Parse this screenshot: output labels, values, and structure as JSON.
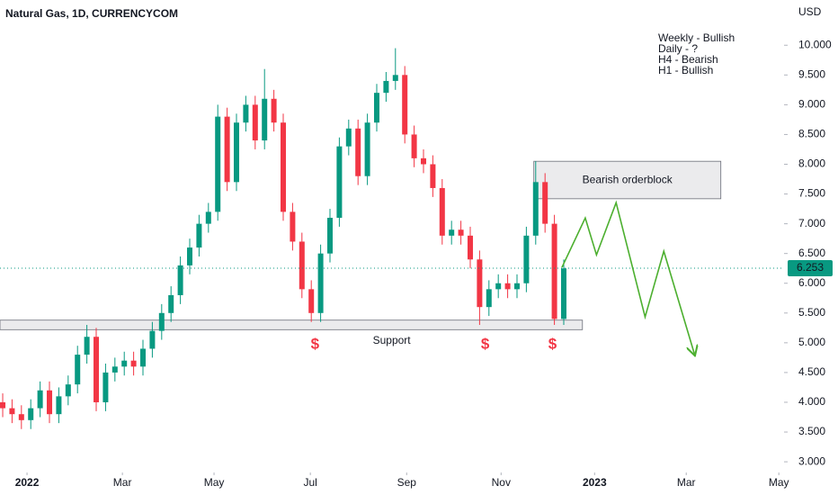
{
  "chart_data": {
    "type": "candlestick",
    "title": "Natural Gas, 1D, CURRENCYCOM",
    "y_axis_label": "USD",
    "up_color": "#089981",
    "down_color": "#f23645",
    "grid": false,
    "open": [
      4.0,
      3.9,
      3.8,
      3.7,
      3.9,
      4.2,
      3.8,
      4.1,
      4.3,
      4.8,
      5.1,
      4.0,
      4.5,
      4.6,
      4.7,
      4.6,
      4.9,
      5.2,
      5.5,
      5.8,
      6.3,
      6.6,
      7.0,
      7.2,
      8.8,
      7.7,
      8.7,
      9.0,
      8.4,
      9.1,
      8.7,
      7.2,
      6.7,
      5.9,
      5.5,
      6.5,
      7.1,
      8.3,
      8.6,
      7.8,
      8.7,
      9.2,
      9.4,
      9.5,
      8.5,
      8.1,
      8.0,
      7.6,
      6.8,
      6.9,
      6.8,
      6.4,
      5.6,
      5.9,
      6.0,
      5.9,
      6.0,
      6.8,
      7.7,
      7.0,
      5.4
    ],
    "high": [
      4.15,
      4.05,
      3.95,
      4.05,
      4.35,
      4.35,
      4.25,
      4.45,
      4.95,
      5.3,
      5.25,
      4.65,
      4.75,
      4.85,
      4.85,
      5.05,
      5.35,
      5.65,
      5.95,
      6.45,
      6.75,
      7.15,
      7.35,
      9.0,
      8.95,
      8.85,
      9.15,
      9.15,
      9.6,
      9.25,
      8.85,
      7.35,
      6.85,
      6.05,
      6.65,
      7.25,
      8.45,
      8.75,
      8.75,
      8.85,
      9.35,
      9.55,
      9.95,
      9.65,
      8.65,
      8.25,
      8.15,
      7.75,
      7.05,
      7.05,
      6.95,
      6.55,
      6.05,
      6.15,
      6.15,
      6.15,
      6.95,
      8.05,
      7.85,
      7.15,
      6.4
    ],
    "low": [
      3.75,
      3.65,
      3.55,
      3.55,
      3.75,
      3.65,
      3.65,
      3.95,
      4.15,
      4.65,
      3.85,
      3.85,
      4.35,
      4.45,
      4.45,
      4.45,
      4.75,
      5.05,
      5.35,
      5.65,
      6.15,
      6.45,
      6.85,
      7.05,
      7.55,
      7.55,
      8.55,
      8.25,
      8.25,
      8.55,
      7.05,
      6.55,
      5.75,
      5.35,
      5.35,
      6.35,
      6.95,
      8.15,
      7.65,
      7.65,
      8.55,
      9.05,
      9.25,
      8.35,
      7.95,
      7.85,
      7.45,
      6.65,
      6.65,
      6.65,
      6.25,
      5.3,
      5.45,
      5.75,
      5.75,
      5.75,
      5.85,
      6.65,
      6.85,
      5.3,
      5.3
    ],
    "close": [
      3.9,
      3.8,
      3.7,
      3.9,
      4.2,
      3.8,
      4.1,
      4.3,
      4.8,
      5.1,
      4.0,
      4.5,
      4.6,
      4.7,
      4.6,
      4.9,
      5.2,
      5.5,
      5.8,
      6.3,
      6.6,
      7.0,
      7.2,
      8.8,
      7.7,
      8.7,
      9.0,
      8.4,
      9.1,
      8.7,
      7.2,
      6.7,
      5.9,
      5.5,
      6.5,
      7.1,
      8.3,
      8.6,
      7.8,
      8.7,
      9.2,
      9.4,
      9.5,
      8.5,
      8.1,
      8.0,
      7.6,
      6.8,
      6.9,
      6.8,
      6.4,
      5.6,
      5.9,
      6.0,
      5.9,
      6.0,
      6.8,
      7.7,
      7.0,
      5.4,
      6.25
    ],
    "last_price": {
      "value": 6.253,
      "label": "6.253"
    },
    "last_price_color": "#089981",
    "xlim": [
      -0.29,
      83.56
    ],
    "xticks": [
      {
        "value": 2.6,
        "label": "2022"
      },
      {
        "value": 12.8,
        "label": "Mar"
      },
      {
        "value": 22.6,
        "label": "May"
      },
      {
        "value": 32.9,
        "label": "Jul"
      },
      {
        "value": 43.2,
        "label": "Sep"
      },
      {
        "value": 53.3,
        "label": "Nov"
      },
      {
        "value": 63.3,
        "label": "2023"
      },
      {
        "value": 73.1,
        "label": "Mar"
      },
      {
        "value": 83.0,
        "label": "May"
      }
    ],
    "ylim": [
      2.82,
      10.76
    ],
    "yticks": [
      {
        "value": 3.0,
        "label": "3.000"
      },
      {
        "value": 3.5,
        "label": "3.500"
      },
      {
        "value": 4.0,
        "label": "4.000"
      },
      {
        "value": 4.5,
        "label": "4.500"
      },
      {
        "value": 5.0,
        "label": "5.000"
      },
      {
        "value": 5.5,
        "label": "5.500"
      },
      {
        "value": 6.0,
        "label": "6.000"
      },
      {
        "value": 6.5,
        "label": "6.500"
      },
      {
        "value": 7.0,
        "label": "7.000"
      },
      {
        "value": 7.5,
        "label": "7.500"
      },
      {
        "value": 8.0,
        "label": "8.000"
      },
      {
        "value": 8.5,
        "label": "8.500"
      },
      {
        "value": 9.0,
        "label": "9.000"
      },
      {
        "value": 9.5,
        "label": "9.500"
      },
      {
        "value": 10.0,
        "label": "10.000"
      }
    ],
    "zones": [
      {
        "label": "Support",
        "xlim": [
          -0.29,
          62.0
        ],
        "ylim": [
          5.22,
          5.38
        ],
        "label_x": 41.6,
        "label_y": 5.03
      },
      {
        "label": "Bearish orderblock",
        "xlim": [
          56.8,
          76.8
        ],
        "ylim": [
          7.42,
          8.05
        ],
        "label_x": 66.8,
        "label_y": 7.73
      }
    ],
    "markers": [
      {
        "text": "$",
        "x": 33.4,
        "y": 4.97
      },
      {
        "text": "$",
        "x": 51.6,
        "y": 4.97
      },
      {
        "text": "$",
        "x": 58.8,
        "y": 4.97
      }
    ],
    "projection": {
      "color": "#4caf2f",
      "x": [
        59.8,
        62.3,
        63.5,
        65.6,
        68.7,
        70.7,
        74.0
      ],
      "y": [
        6.265,
        7.097,
        6.477,
        7.354,
        5.434,
        6.538,
        4.799
      ]
    },
    "notes": [
      "Weekly - Bullish",
      "Daily - ?",
      "H4 - Bearish",
      "H1 - Bullish"
    ]
  }
}
